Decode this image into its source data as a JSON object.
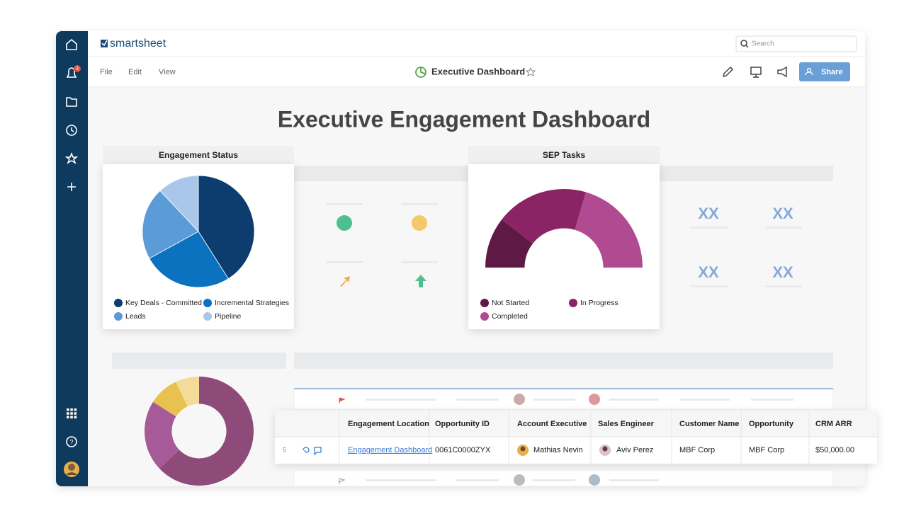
{
  "sidebar": {
    "badge": "3"
  },
  "header": {
    "logo": "smartsheet",
    "search": "Search",
    "menu": [
      "File",
      "Edit",
      "View"
    ],
    "title": "Executive Dashboard",
    "share": "Share"
  },
  "dashboard": {
    "title": "Executive Engagement Dashboard",
    "engagement_status": {
      "title": "Engagement Status",
      "type": "pie",
      "series": [
        {
          "name": "Key Deals - Committed",
          "color": "#0d3d6e",
          "value": 41
        },
        {
          "name": "Incremental Strategies",
          "color": "#0a72bf",
          "value": 26
        },
        {
          "name": "Leads",
          "color": "#5b9bd8",
          "value": 21
        },
        {
          "name": "Pipeline",
          "color": "#a9c7ea",
          "value": 12
        }
      ]
    },
    "sep_tasks": {
      "title": "SEP Tasks",
      "type": "half-donut",
      "series": [
        {
          "name": "Not Started",
          "color": "#5e1a44",
          "value": 21
        },
        {
          "name": "In Progress",
          "color": "#8b2465",
          "value": 38
        },
        {
          "name": "Completed",
          "color": "#b04b92",
          "value": 41
        }
      ]
    },
    "metrics": [
      "XX",
      "XX",
      "XX",
      "XX"
    ],
    "bottom_chart": {
      "type": "donut",
      "series": [
        {
          "color": "#8e4b79",
          "value": 63
        },
        {
          "color": "#a75a98",
          "value": 21
        },
        {
          "color": "#e8c14f",
          "value": 9
        },
        {
          "color": "#f2dc97",
          "value": 7
        }
      ]
    }
  },
  "table": {
    "columns": [
      "Engagement Location",
      "Opportunity ID",
      "Account Executive",
      "Sales Engineer",
      "Customer Name",
      "Opportunity",
      "CRM ARR"
    ],
    "row": {
      "number": 5,
      "cells": [
        "Engagement Dashboard",
        "0061C0000ZYX",
        "Mathias Nevin",
        "Aviv Perez",
        "MBF Corp",
        "MBF Corp",
        "$50,000.00"
      ]
    }
  }
}
